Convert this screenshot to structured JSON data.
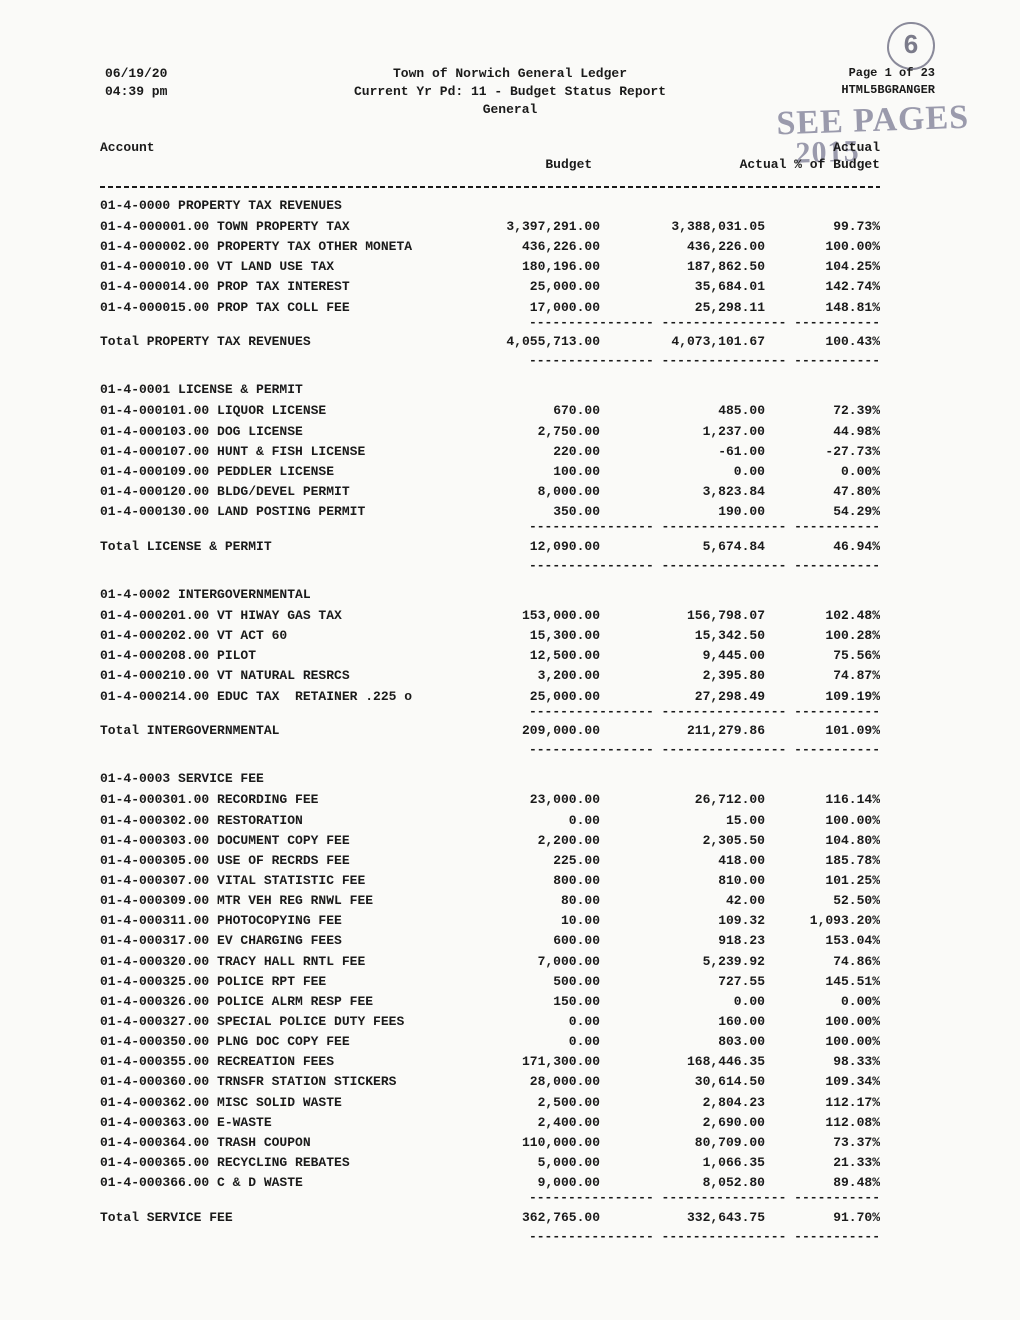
{
  "header": {
    "date": "06/19/20",
    "time": "04:39 pm",
    "title1": "Town of Norwich General Ledger",
    "title2": "Current Yr Pd: 11 - Budget Status Report",
    "title3": "General",
    "page": "Page 1 of 23",
    "system": "HTML5BGRANGER"
  },
  "annot": {
    "circle": "6",
    "script1": "SEE PAGES",
    "script2": "2015"
  },
  "columns": {
    "account": "Account",
    "budget": "Budget",
    "actual_top": "Actual",
    "actual": "Actual % of Budget"
  },
  "sections": [
    {
      "title": "01-4-0000 PROPERTY TAX REVENUES",
      "rows": [
        {
          "label": "01-4-000001.00 TOWN PROPERTY TAX",
          "budget": "3,397,291.00",
          "actual": "3,388,031.05",
          "pct": "99.73%"
        },
        {
          "label": "01-4-000002.00 PROPERTY TAX OTHER MONETA",
          "budget": "436,226.00",
          "actual": "436,226.00",
          "pct": "100.00%"
        },
        {
          "label": "01-4-000010.00 VT LAND USE TAX",
          "budget": "180,196.00",
          "actual": "187,862.50",
          "pct": "104.25%"
        },
        {
          "label": "01-4-000014.00 PROP TAX INTEREST",
          "budget": "25,000.00",
          "actual": "35,684.01",
          "pct": "142.74%"
        },
        {
          "label": "01-4-000015.00 PROP TAX COLL FEE",
          "budget": "17,000.00",
          "actual": "25,298.11",
          "pct": "148.81%"
        }
      ],
      "total": {
        "label": "Total PROPERTY TAX REVENUES",
        "budget": "4,055,713.00",
        "actual": "4,073,101.67",
        "pct": "100.43%"
      }
    },
    {
      "title": "01-4-0001 LICENSE & PERMIT",
      "rows": [
        {
          "label": "01-4-000101.00 LIQUOR LICENSE",
          "budget": "670.00",
          "actual": "485.00",
          "pct": "72.39%"
        },
        {
          "label": "01-4-000103.00 DOG LICENSE",
          "budget": "2,750.00",
          "actual": "1,237.00",
          "pct": "44.98%"
        },
        {
          "label": "01-4-000107.00 HUNT & FISH LICENSE",
          "budget": "220.00",
          "actual": "-61.00",
          "pct": "-27.73%"
        },
        {
          "label": "01-4-000109.00 PEDDLER LICENSE",
          "budget": "100.00",
          "actual": "0.00",
          "pct": "0.00%"
        },
        {
          "label": "01-4-000120.00 BLDG/DEVEL PERMIT",
          "budget": "8,000.00",
          "actual": "3,823.84",
          "pct": "47.80%"
        },
        {
          "label": "01-4-000130.00 LAND POSTING PERMIT",
          "budget": "350.00",
          "actual": "190.00",
          "pct": "54.29%"
        }
      ],
      "total": {
        "label": "Total LICENSE & PERMIT",
        "budget": "12,090.00",
        "actual": "5,674.84",
        "pct": "46.94%"
      }
    },
    {
      "title": "01-4-0002 INTERGOVERNMENTAL",
      "rows": [
        {
          "label": "01-4-000201.00 VT HIWAY GAS TAX",
          "budget": "153,000.00",
          "actual": "156,798.07",
          "pct": "102.48%"
        },
        {
          "label": "01-4-000202.00 VT ACT 60",
          "budget": "15,300.00",
          "actual": "15,342.50",
          "pct": "100.28%"
        },
        {
          "label": "01-4-000208.00 PILOT",
          "budget": "12,500.00",
          "actual": "9,445.00",
          "pct": "75.56%"
        },
        {
          "label": "01-4-000210.00 VT NATURAL RESRCS",
          "budget": "3,200.00",
          "actual": "2,395.80",
          "pct": "74.87%"
        },
        {
          "label": "01-4-000214.00 EDUC TAX  RETAINER .225 o",
          "budget": "25,000.00",
          "actual": "27,298.49",
          "pct": "109.19%"
        }
      ],
      "total": {
        "label": "Total INTERGOVERNMENTAL",
        "budget": "209,000.00",
        "actual": "211,279.86",
        "pct": "101.09%"
      }
    },
    {
      "title": "01-4-0003 SERVICE FEE",
      "rows": [
        {
          "label": "01-4-000301.00 RECORDING FEE",
          "budget": "23,000.00",
          "actual": "26,712.00",
          "pct": "116.14%"
        },
        {
          "label": "01-4-000302.00 RESTORATION",
          "budget": "0.00",
          "actual": "15.00",
          "pct": "100.00%"
        },
        {
          "label": "01-4-000303.00 DOCUMENT COPY FEE",
          "budget": "2,200.00",
          "actual": "2,305.50",
          "pct": "104.80%"
        },
        {
          "label": "01-4-000305.00 USE OF RECRDS FEE",
          "budget": "225.00",
          "actual": "418.00",
          "pct": "185.78%"
        },
        {
          "label": "01-4-000307.00 VITAL STATISTIC FEE",
          "budget": "800.00",
          "actual": "810.00",
          "pct": "101.25%"
        },
        {
          "label": "01-4-000309.00 MTR VEH REG RNWL FEE",
          "budget": "80.00",
          "actual": "42.00",
          "pct": "52.50%"
        },
        {
          "label": "01-4-000311.00 PHOTOCOPYING FEE",
          "budget": "10.00",
          "actual": "109.32",
          "pct": "1,093.20%"
        },
        {
          "label": "01-4-000317.00 EV CHARGING FEES",
          "budget": "600.00",
          "actual": "918.23",
          "pct": "153.04%"
        },
        {
          "label": "01-4-000320.00 TRACY HALL RNTL FEE",
          "budget": "7,000.00",
          "actual": "5,239.92",
          "pct": "74.86%"
        },
        {
          "label": "01-4-000325.00 POLICE RPT FEE",
          "budget": "500.00",
          "actual": "727.55",
          "pct": "145.51%"
        },
        {
          "label": "01-4-000326.00 POLICE ALRM RESP FEE",
          "budget": "150.00",
          "actual": "0.00",
          "pct": "0.00%"
        },
        {
          "label": "01-4-000327.00 SPECIAL POLICE DUTY FEES",
          "budget": "0.00",
          "actual": "160.00",
          "pct": "100.00%"
        },
        {
          "label": "01-4-000350.00 PLNG DOC COPY FEE",
          "budget": "0.00",
          "actual": "803.00",
          "pct": "100.00%"
        },
        {
          "label": "01-4-000355.00 RECREATION FEES",
          "budget": "171,300.00",
          "actual": "168,446.35",
          "pct": "98.33%"
        },
        {
          "label": "01-4-000360.00 TRNSFR STATION STICKERS",
          "budget": "28,000.00",
          "actual": "30,614.50",
          "pct": "109.34%"
        },
        {
          "label": "01-4-000362.00 MISC SOLID WASTE",
          "budget": "2,500.00",
          "actual": "2,804.23",
          "pct": "112.17%"
        },
        {
          "label": "01-4-000363.00 E-WASTE",
          "budget": "2,400.00",
          "actual": "2,690.00",
          "pct": "112.08%"
        },
        {
          "label": "01-4-000364.00 TRASH COUPON",
          "budget": "110,000.00",
          "actual": "80,709.00",
          "pct": "73.37%"
        },
        {
          "label": "01-4-000365.00 RECYCLING REBATES",
          "budget": "5,000.00",
          "actual": "1,066.35",
          "pct": "21.33%"
        },
        {
          "label": "01-4-000366.00 C & D WASTE",
          "budget": "9,000.00",
          "actual": "8,052.80",
          "pct": "89.48%"
        }
      ],
      "total": {
        "label": "Total SERVICE FEE",
        "budget": "362,765.00",
        "actual": "332,643.75",
        "pct": "91.70%"
      }
    }
  ],
  "subdash": "---------------- ---------------- -----------",
  "style": {
    "font": "Courier New",
    "fg": "#1a1a1a",
    "bg": "#fafaf8",
    "annot_color": "#9a9aac"
  }
}
